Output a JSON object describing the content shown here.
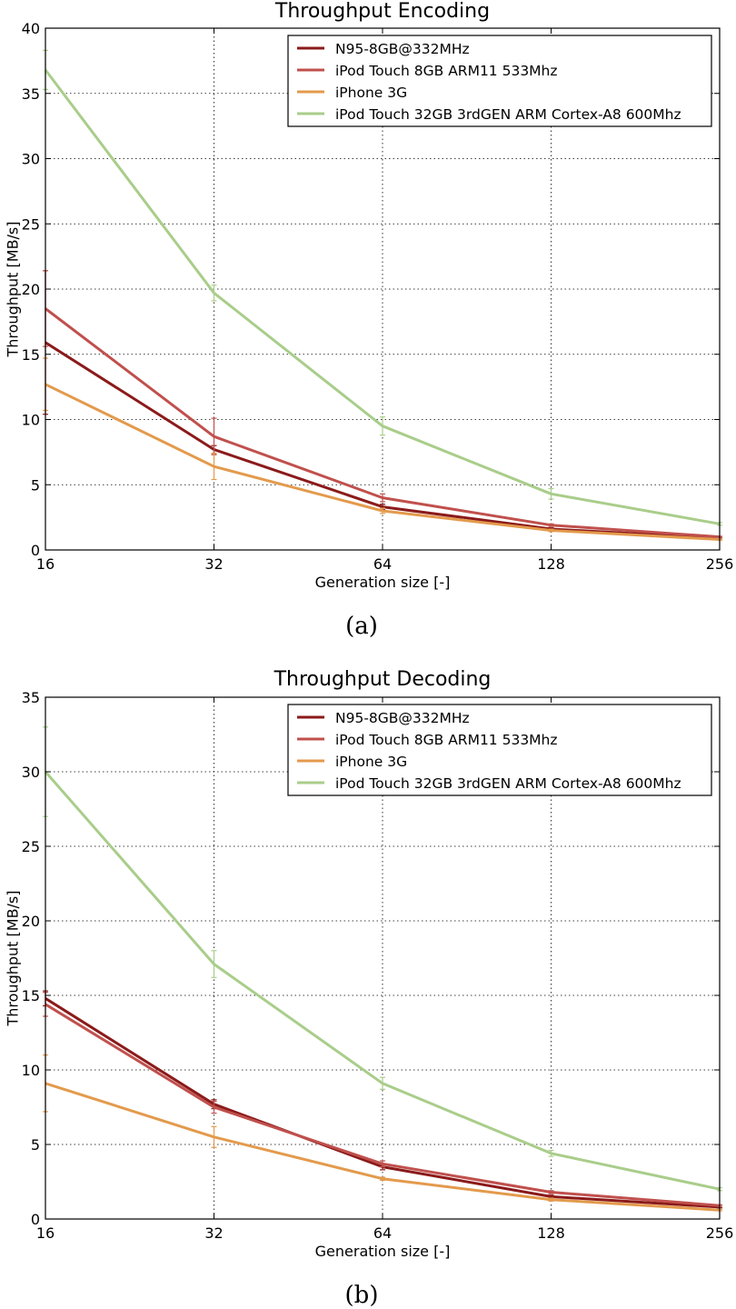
{
  "chart_data": [
    {
      "type": "line",
      "title": "Throughput Encoding",
      "xlabel": "Generation size [-]",
      "ylabel": "Throughput [MB/s]",
      "caption": "(a)",
      "x_scale": "log2",
      "x": [
        16,
        32,
        64,
        128,
        256
      ],
      "x_tick_labels": [
        "16",
        "32",
        "64",
        "128",
        "256"
      ],
      "ylim": [
        0,
        40
      ],
      "y_ticks": [
        0,
        5,
        10,
        15,
        20,
        25,
        30,
        35,
        40
      ],
      "grid": true,
      "legend_position": "top-right",
      "series": [
        {
          "name": "N95-8GB@332MHz",
          "color": "#8b1a1a",
          "values": [
            15.9,
            7.7,
            3.3,
            1.6,
            0.9
          ],
          "error": [
            5.5,
            0.3,
            0.2,
            0.1,
            0.05
          ]
        },
        {
          "name": "iPod Touch 8GB ARM11 533Mhz",
          "color": "#c0504d",
          "values": [
            18.5,
            8.7,
            4.0,
            1.9,
            1.0
          ],
          "error": [
            2.9,
            1.4,
            0.3,
            0.1,
            0.05
          ]
        },
        {
          "name": "iPhone 3G",
          "color": "#e39a4c",
          "values": [
            12.7,
            6.4,
            3.0,
            1.5,
            0.8
          ],
          "error": [
            2.0,
            1.0,
            0.2,
            0.1,
            0.05
          ]
        },
        {
          "name": "iPod Touch 32GB 3rdGEN ARM Cortex-A8 600Mhz",
          "color": "#a9cd8a",
          "values": [
            36.8,
            19.7,
            9.5,
            4.3,
            2.0
          ],
          "error": [
            1.5,
            0.6,
            0.7,
            0.4,
            0.1
          ]
        }
      ]
    },
    {
      "type": "line",
      "title": "Throughput Decoding",
      "xlabel": "Generation size [-]",
      "ylabel": "Throughput [MB/s]",
      "caption": "(b)",
      "x_scale": "log2",
      "x": [
        16,
        32,
        64,
        128,
        256
      ],
      "x_tick_labels": [
        "16",
        "32",
        "64",
        "128",
        "256"
      ],
      "ylim": [
        0,
        35
      ],
      "y_ticks": [
        0,
        5,
        10,
        15,
        20,
        25,
        30,
        35
      ],
      "grid": true,
      "legend_position": "top-right",
      "series": [
        {
          "name": "N95-8GB@332MHz",
          "color": "#8b1a1a",
          "values": [
            14.8,
            7.7,
            3.5,
            1.5,
            0.8
          ],
          "error": [
            0.5,
            0.3,
            0.2,
            0.1,
            0.05
          ]
        },
        {
          "name": "iPod Touch 8GB ARM11 533Mhz",
          "color": "#c0504d",
          "values": [
            14.4,
            7.5,
            3.7,
            1.8,
            0.9
          ],
          "error": [
            0.8,
            0.4,
            0.2,
            0.1,
            0.05
          ]
        },
        {
          "name": "iPhone 3G",
          "color": "#e39a4c",
          "values": [
            9.1,
            5.5,
            2.7,
            1.3,
            0.6
          ],
          "error": [
            1.9,
            0.7,
            0.1,
            0.1,
            0.05
          ]
        },
        {
          "name": "iPod Touch 32GB 3rdGEN ARM Cortex-A8 600Mhz",
          "color": "#a9cd8a",
          "values": [
            30.0,
            17.1,
            9.1,
            4.4,
            2.0
          ],
          "error": [
            3.0,
            0.9,
            0.4,
            0.2,
            0.1
          ]
        }
      ]
    }
  ]
}
